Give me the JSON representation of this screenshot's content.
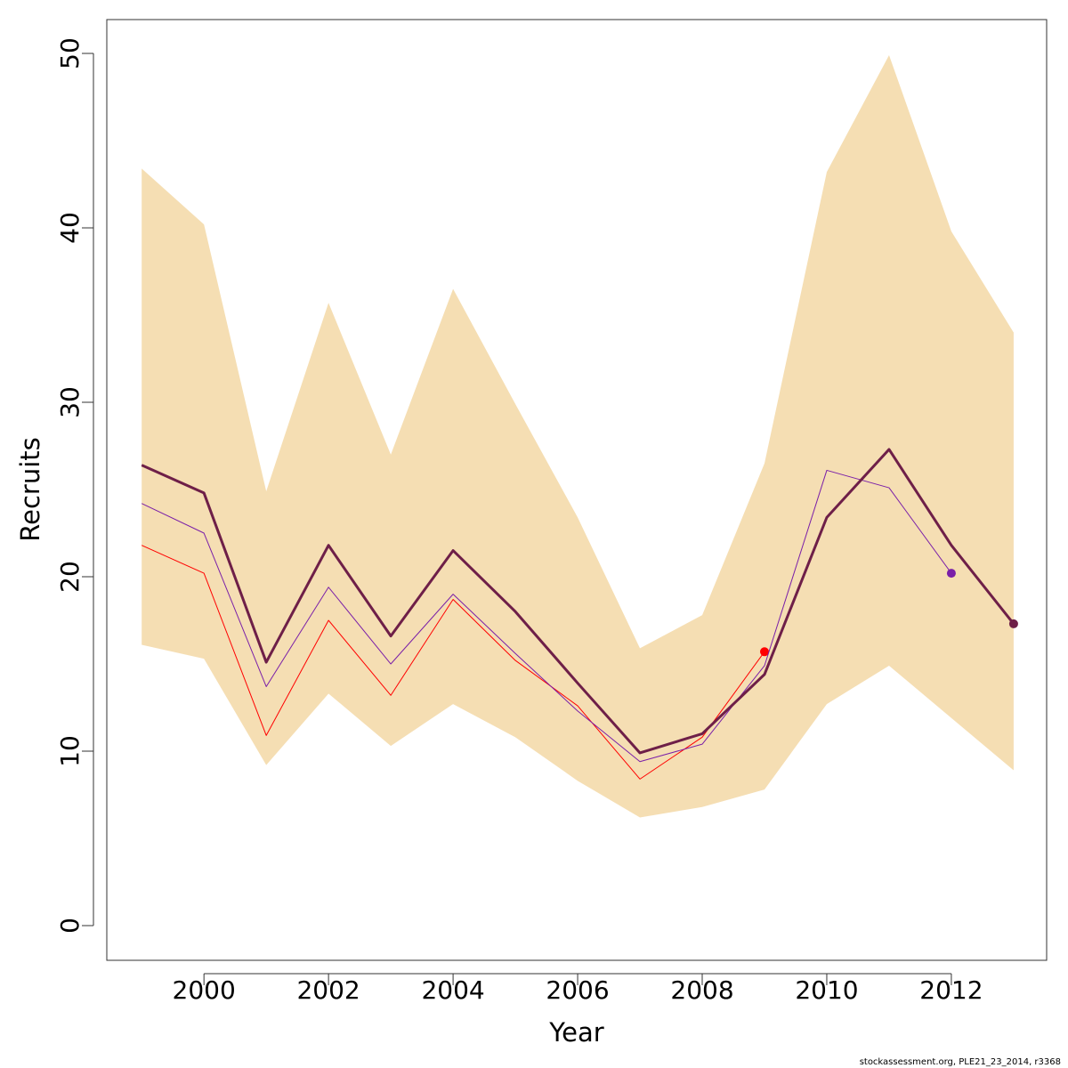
{
  "chart_data": {
    "type": "line",
    "x_label": "Year",
    "y_label": "Recruits",
    "footer": "stockassessment.org, PLE21_23_2014, r3368",
    "x": [
      1999,
      2000,
      2001,
      2002,
      2003,
      2004,
      2005,
      2006,
      2007,
      2008,
      2009,
      2010,
      2011,
      2012,
      2013
    ],
    "xlim": [
      1998.44,
      2013.53
    ],
    "xticks": [
      2000,
      2002,
      2004,
      2006,
      2008,
      2010,
      2012
    ],
    "ylim": [
      -1.99,
      51.94
    ],
    "yticks": [
      0,
      10,
      20,
      30,
      40,
      50
    ],
    "band": {
      "color": "#f5deb3",
      "upper": [
        43.4,
        40.2,
        24.9,
        35.7,
        27.0,
        36.5,
        29.9,
        23.4,
        15.9,
        17.8,
        26.5,
        43.2,
        49.9,
        39.8,
        34.0
      ],
      "lower": [
        16.1,
        15.3,
        9.2,
        13.3,
        10.3,
        12.7,
        10.8,
        8.3,
        6.2,
        6.8,
        7.8,
        12.7,
        14.9,
        11.9,
        8.9
      ]
    },
    "series": [
      {
        "color": "#ff0000",
        "width": 1,
        "end_marker": true,
        "values": [
          21.8,
          20.2,
          10.9,
          17.5,
          13.2,
          18.7,
          15.2,
          12.6,
          8.4,
          10.8,
          15.7,
          null,
          null,
          null,
          null
        ]
      },
      {
        "color": "#7a1fa8",
        "width": 1,
        "end_marker": true,
        "values": [
          24.2,
          22.5,
          13.7,
          19.4,
          15.0,
          19.0,
          15.6,
          12.3,
          9.4,
          10.4,
          14.9,
          26.1,
          25.1,
          20.2,
          null
        ]
      },
      {
        "color": "#6e1f48",
        "width": 3,
        "end_marker": true,
        "values": [
          26.4,
          24.8,
          15.1,
          21.8,
          16.6,
          21.5,
          18.0,
          13.9,
          9.9,
          11.0,
          14.4,
          23.4,
          27.3,
          21.8,
          17.3
        ]
      }
    ]
  }
}
